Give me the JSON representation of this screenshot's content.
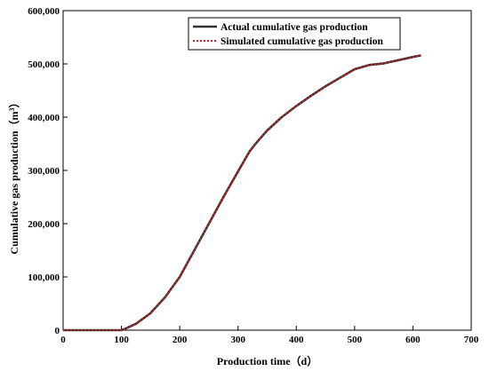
{
  "chart_data": {
    "type": "line",
    "xlabel": "Production time（d）",
    "ylabel_main": "Cumulative gas production（m",
    "ylabel_sup": "3",
    "ylabel_end": "）",
    "xlim": [
      0,
      700
    ],
    "ylim": [
      0,
      600000
    ],
    "xticks": [
      0,
      100,
      200,
      300,
      400,
      500,
      600,
      700
    ],
    "xtick_labels": [
      "0",
      "100",
      "200",
      "300",
      "400",
      "500",
      "600",
      "700"
    ],
    "yticks": [
      0,
      100000,
      200000,
      300000,
      400000,
      500000,
      600000
    ],
    "ytick_labels": [
      "0",
      "100,000",
      "200,000",
      "300,000",
      "400,000",
      "500,000",
      "600,000"
    ],
    "grid": false,
    "legend_position": "top-right",
    "series": [
      {
        "name": "Actual cumulative gas production",
        "color": "#333333",
        "style": "solid",
        "x": [
          0,
          100,
          105,
          125,
          150,
          175,
          200,
          225,
          250,
          275,
          300,
          320,
          330,
          350,
          375,
          400,
          425,
          450,
          475,
          500,
          525,
          550,
          575,
          600,
          614
        ],
        "y": [
          0,
          0,
          2000,
          12000,
          32000,
          62000,
          100000,
          150000,
          200000,
          250000,
          298000,
          336000,
          350000,
          375000,
          400000,
          421000,
          440000,
          458000,
          474000,
          490000,
          498000,
          501000,
          507000,
          513000,
          516000
        ]
      },
      {
        "name": "Simulated cumulative gas production",
        "color": "#e02020",
        "style": "dotted",
        "x": [
          0,
          100,
          105,
          125,
          150,
          175,
          200,
          225,
          250,
          275,
          300,
          320,
          330,
          350,
          375,
          400,
          425,
          450,
          475,
          500,
          525,
          550,
          575,
          600,
          614
        ],
        "y": [
          0,
          0,
          2000,
          12000,
          32000,
          62000,
          100000,
          150000,
          200000,
          250000,
          298000,
          336000,
          350000,
          375000,
          400000,
          421000,
          440000,
          458000,
          474000,
          490000,
          498000,
          501000,
          507000,
          513000,
          516000
        ]
      }
    ]
  }
}
